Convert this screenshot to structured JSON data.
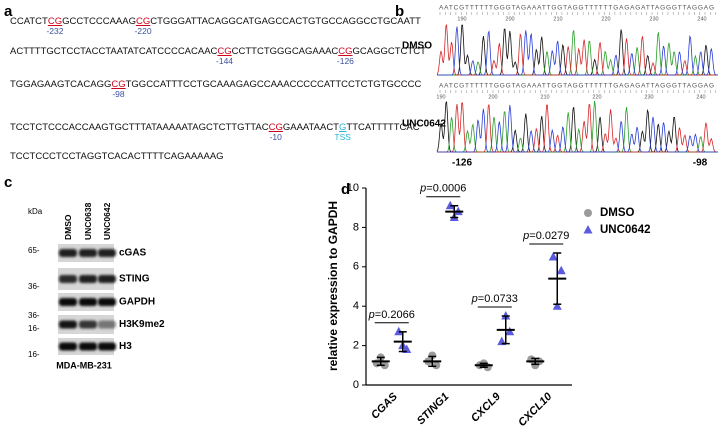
{
  "panel_labels": [
    "a",
    "b",
    "c",
    "d"
  ],
  "sequence": {
    "lines": [
      [
        {
          "text": "CCATCT"
        },
        {
          "text": "CG",
          "color": "#d0021b",
          "label": "-232"
        },
        {
          "text": "GCCTCCCAAAG"
        },
        {
          "text": "CG",
          "color": "#d0021b",
          "label": "-220"
        },
        {
          "text": "CTGGGATTACAGGCATGAGCCACTGTGCCAGGCCTGCAATT"
        }
      ],
      [
        {
          "text": "ACTTTTGCTCCTACCTAATATCATCCCCACAAC"
        },
        {
          "text": "CG",
          "color": "#d0021b",
          "label": "-144"
        },
        {
          "text": "CCTTCTGGGCAGAAAC"
        },
        {
          "text": "CG",
          "color": "#d0021b",
          "label": "-126"
        },
        {
          "text": "GCAGGCTCTCT"
        }
      ],
      [
        {
          "text": "TGGAGAAGTCACAGG"
        },
        {
          "text": "CG",
          "color": "#d0021b",
          "label": "-98"
        },
        {
          "text": "TGGCCATTTCCTGCAAAGAGCCAAACCCCCATTCCTCTGTGCCCC"
        }
      ],
      [
        {
          "text": "TCCTCTCCCACCAAGTGCTTTATAAAAATAGCTCTTGTTAC"
        },
        {
          "text": "CG",
          "color": "#d0021b",
          "label": "-10"
        },
        {
          "text": "GAAATAACT"
        },
        {
          "text": "G",
          "color": "#29b6d6",
          "label": "TSS"
        },
        {
          "text": "TTCATTTTTCAC"
        }
      ],
      [
        {
          "text": "TCCTCCCTCCTAGGTCACACTTTTCAGAAAAAG"
        }
      ]
    ]
  },
  "chromatogram": {
    "traces": [
      {
        "name": "DMSO",
        "bases": "AATCGTTTTTTGGGTAGAAATTGGTAGGTTTTTTGAGAGATTAGGGTTAGGAG",
        "ticks": [
          190,
          200,
          210,
          220,
          230,
          240
        ]
      },
      {
        "name": "UNC0642",
        "bases": "AATCGTTTTTTGGGTAGAAATTGGTAGGTTTTTTGAGAGATTAGGGTTAGGAG",
        "ticks": [
          190,
          200,
          210,
          220,
          230,
          240
        ]
      }
    ],
    "positions": [
      "-126",
      "-98"
    ]
  },
  "western_blot": {
    "unit": "kDa",
    "lanes": [
      "DMSO",
      "UNC0638",
      "UNC0642"
    ],
    "rows": [
      {
        "marker": "65-",
        "protein": "cGAS"
      },
      {
        "marker": "36-",
        "protein": "STING"
      },
      {
        "marker": "36-",
        "protein": "GAPDH"
      },
      {
        "marker": "16-",
        "protein": "H3K9me2"
      },
      {
        "marker": "16-",
        "protein": "H3"
      }
    ],
    "cell_line": "MDA-MB-231"
  },
  "chart_data": {
    "type": "dotplot",
    "ylabel": "relative expression to GAPDH",
    "categories": [
      "CGAS",
      "STING1",
      "CXCL9",
      "CXCL10"
    ],
    "series": [
      {
        "name": "DMSO",
        "color": "#9b9b9b",
        "marker": "circle",
        "values": [
          [
            1.1,
            1.4,
            1.0
          ],
          [
            1.2,
            1.5,
            1.0
          ],
          [
            1.0,
            1.1,
            0.9
          ],
          [
            1.3,
            1.0,
            1.2
          ]
        ],
        "mean": [
          1.2,
          1.2,
          1.0,
          1.2
        ],
        "sd": [
          0.2,
          0.25,
          0.1,
          0.15
        ]
      },
      {
        "name": "UNC0642",
        "color": "#5b5be0",
        "marker": "triangle",
        "values": [
          [
            2.7,
            2.0,
            1.8
          ],
          [
            9.1,
            8.5,
            8.8
          ],
          [
            2.2,
            3.5,
            2.7
          ],
          [
            6.5,
            4.0,
            5.8
          ]
        ],
        "mean": [
          2.2,
          8.8,
          2.8,
          5.4
        ],
        "sd": [
          0.5,
          0.3,
          0.7,
          1.3
        ]
      }
    ],
    "p_values": [
      {
        "prefix": "p",
        "text": "=0.2066"
      },
      {
        "prefix": "p",
        "text": "=0.0006"
      },
      {
        "prefix": "p",
        "text": "=0.0733"
      },
      {
        "prefix": "p",
        "text": "=0.0279"
      }
    ],
    "ylim": [
      0,
      10
    ],
    "yticks": [
      0,
      2,
      4,
      6,
      8,
      10
    ],
    "legend": "upper right"
  }
}
